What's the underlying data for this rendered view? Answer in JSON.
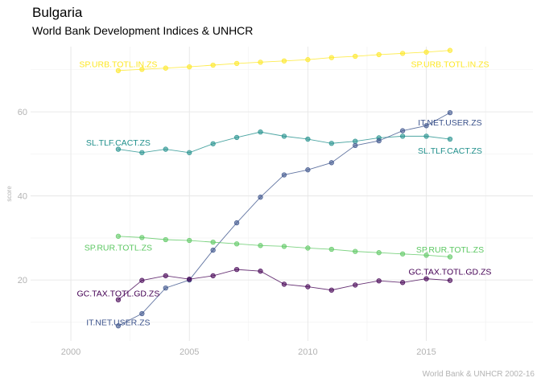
{
  "chart_data": {
    "type": "line",
    "title": "Bulgaria",
    "subtitle": "World Bank Development Indices & UNHCR",
    "caption": "World Bank & UNHCR 2002-16",
    "xlabel": "",
    "ylabel": "score",
    "xlim": [
      1998.3,
      2019.5
    ],
    "ylim": [
      5.5,
      75.5
    ],
    "xticks": [
      2000,
      2005,
      2010,
      2015
    ],
    "yticks": [
      20,
      40,
      60
    ],
    "grid": true,
    "legend": "none",
    "x": [
      2002,
      2003,
      2004,
      2005,
      2006,
      2007,
      2008,
      2009,
      2010,
      2011,
      2012,
      2013,
      2014,
      2015,
      2016
    ],
    "series": [
      {
        "name": "SP.URB.TOTL.IN.ZS",
        "color": "#fde725",
        "values": [
          69.8,
          70.1,
          70.4,
          70.7,
          71.1,
          71.5,
          71.8,
          72.1,
          72.4,
          72.9,
          73.2,
          73.6,
          73.9,
          74.2,
          74.6
        ],
        "labels": [
          {
            "text": "SP.URB.TOTL.IN.ZS",
            "at": 2002,
            "y": 71.4
          },
          {
            "text": "SP.URB.TOTL.IN.ZS",
            "at": 2016,
            "y": 71.4
          }
        ]
      },
      {
        "name": "SL.TLF.CACT.ZS",
        "color": "#21908c",
        "values": [
          51.1,
          50.3,
          51.1,
          50.3,
          52.4,
          53.9,
          55.2,
          54.2,
          53.5,
          52.5,
          53.0,
          53.8,
          54.2,
          54.2,
          53.5
        ],
        "labels": [
          {
            "text": "SL.TLF.CACT.ZS",
            "at": 2002,
            "y": 52.7
          },
          {
            "text": "SL.TLF.CACT.ZS",
            "at": 2016,
            "y": 50.8
          }
        ]
      },
      {
        "name": "IT.NET.USER.ZS",
        "color": "#3b528b",
        "values": [
          9.1,
          12.0,
          18.1,
          20.0,
          27.1,
          33.6,
          39.7,
          45.0,
          46.2,
          47.9,
          52.0,
          53.1,
          55.5,
          56.7,
          59.8
        ],
        "labels": [
          {
            "text": "IT.NET.USER.ZS",
            "at": 2002,
            "y": 10.0
          },
          {
            "text": "IT.NET.USER.ZS",
            "at": 2016,
            "y": 57.5
          }
        ]
      },
      {
        "name": "SP.RUR.TOTL.ZS",
        "color": "#5dc863",
        "values": [
          30.4,
          30.1,
          29.6,
          29.4,
          29.0,
          28.6,
          28.2,
          28.0,
          27.6,
          27.3,
          26.8,
          26.5,
          26.2,
          25.9,
          25.5
        ],
        "labels": [
          {
            "text": "SP.RUR.TOTL.ZS",
            "at": 2002,
            "y": 27.8
          },
          {
            "text": "SP.RUR.TOTL.ZS",
            "at": 2016,
            "y": 27.3
          }
        ]
      },
      {
        "name": "GC.TAX.TOTL.GD.ZS",
        "color": "#440154",
        "values": [
          15.3,
          19.9,
          21.0,
          20.2,
          21.0,
          22.5,
          22.1,
          19.0,
          18.4,
          17.6,
          18.8,
          19.8,
          19.4,
          20.3,
          19.9
        ],
        "labels": [
          {
            "text": "GC.TAX.TOTL.GD.ZS",
            "at": 2002,
            "y": 16.9
          },
          {
            "text": "GC.TAX.TOTL.GD.ZS",
            "at": 2016,
            "y": 22.0
          }
        ]
      }
    ]
  }
}
